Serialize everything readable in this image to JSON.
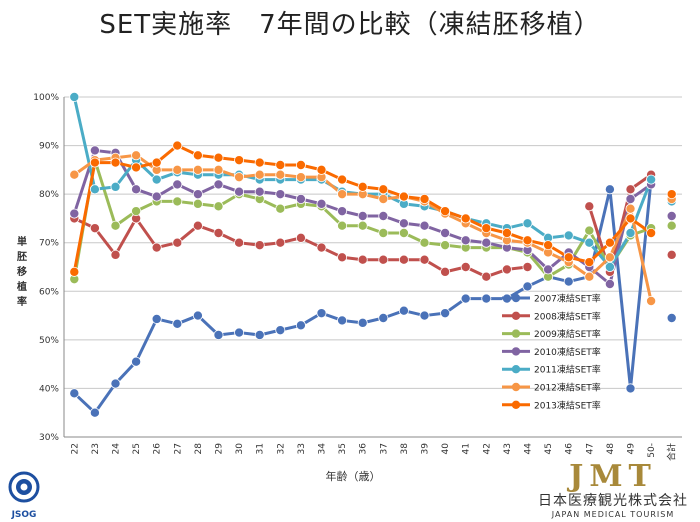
{
  "page": {
    "title": "SET実施率　7年間の比較（凍結胚移植）",
    "logo_left_text": "JSOG",
    "logo_right_mark": "JMT",
    "logo_right_jp": "日本医療観光株式会社",
    "logo_right_en": "JAPAN MEDICAL TOURISM"
  },
  "chart_data": {
    "type": "line",
    "title": "",
    "xlabel": "年齢（歳）",
    "ylabel": "単胚移植率",
    "categories": [
      "22",
      "23",
      "24",
      "25",
      "26",
      "27",
      "28",
      "29",
      "30",
      "31",
      "32",
      "33",
      "34",
      "35",
      "36",
      "37",
      "38",
      "39",
      "40",
      "41",
      "42",
      "43",
      "44",
      "45",
      "46",
      "47",
      "48",
      "49",
      "50-"
    ],
    "total_label": "合計",
    "yticks": [
      "30%",
      "40%",
      "50%",
      "60%",
      "70%",
      "80%",
      "90%",
      "100%"
    ],
    "ylim": [
      30,
      100
    ],
    "grid": true,
    "legend_position": "lower-right",
    "series": [
      {
        "name": "2007凍結SET率",
        "color": "#4a72b8",
        "values": [
          39,
          35,
          41,
          45.5,
          54.3,
          53.3,
          55,
          51,
          51.5,
          51,
          52,
          53,
          55.5,
          54,
          53.5,
          54.5,
          56,
          55,
          55.5,
          58.5,
          58.5,
          58.5,
          61,
          63,
          62,
          63,
          81,
          40,
          83
        ],
        "total": 54.5
      },
      {
        "name": "2008凍結SET率",
        "color": "#c0504d",
        "values": [
          75,
          73,
          67.5,
          75,
          69,
          70,
          73.5,
          72,
          70,
          69.5,
          70,
          71,
          69,
          67,
          66.5,
          66.5,
          66.5,
          66.5,
          64,
          65,
          63,
          64.5,
          65,
          null,
          null,
          77.5,
          64,
          81,
          84
        ],
        "total": 67.5
      },
      {
        "name": "2009凍結SET率",
        "color": "#9bbb59",
        "values": [
          62.5,
          87,
          73.5,
          76.5,
          78.5,
          78.5,
          78,
          77.5,
          80,
          79,
          77,
          78,
          77.5,
          73.5,
          73.5,
          72,
          72,
          70,
          69.5,
          69,
          69,
          69,
          68,
          63,
          65.5,
          72.5,
          65,
          71.5,
          73
        ],
        "total": 73.5
      },
      {
        "name": "2010凍結SET率",
        "color": "#8064a2",
        "values": [
          76,
          89,
          88.5,
          81,
          79.5,
          82,
          80,
          82,
          80.5,
          80.5,
          80,
          79,
          78,
          76.5,
          75.5,
          75.5,
          74,
          73.5,
          72,
          70.5,
          70,
          69,
          68.5,
          64.5,
          68,
          65,
          61.5,
          79,
          82
        ],
        "total": 75.5
      },
      {
        "name": "2011凍結SET率",
        "color": "#4bacc6",
        "values": [
          100,
          81,
          81.5,
          87,
          83,
          84.5,
          84,
          84,
          84,
          83,
          83,
          83,
          83,
          80.5,
          80,
          80,
          78,
          77.5,
          76.5,
          75,
          74,
          73,
          74,
          71,
          71.5,
          70,
          65,
          72,
          83
        ],
        "total": 78.5
      },
      {
        "name": "2012凍結SET率",
        "color": "#f79646",
        "values": [
          84,
          87,
          87.5,
          88,
          85,
          85,
          85,
          85,
          83.5,
          84,
          84,
          83.5,
          83.5,
          80,
          80,
          79,
          79.5,
          78.5,
          76,
          74,
          72,
          70.5,
          70,
          68,
          66,
          63,
          67,
          77,
          58
        ],
        "total": 79
      },
      {
        "name": "2013凍結SET率",
        "color": "#fa6a00",
        "values": [
          64,
          86.5,
          86.5,
          85.5,
          86.5,
          90,
          88,
          87.5,
          87,
          86.5,
          86,
          86,
          85,
          83,
          81.5,
          81,
          79.5,
          79,
          76.5,
          75,
          73,
          72,
          70.5,
          69.5,
          67,
          66,
          70,
          75,
          72
        ],
        "total": 80
      }
    ]
  }
}
